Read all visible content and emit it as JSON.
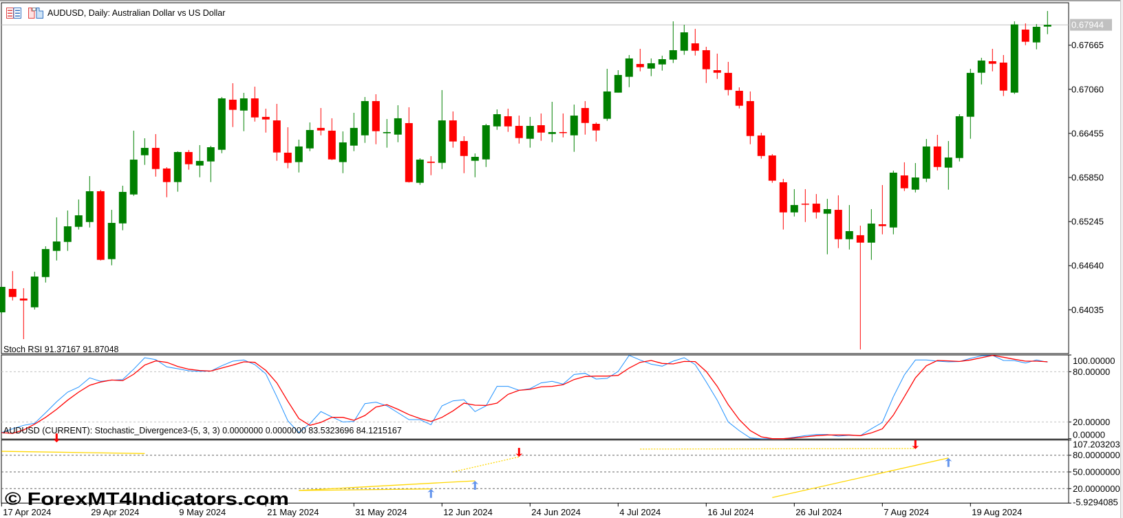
{
  "window": {
    "title": "AUDUSD, Daily:  Australian Dollar vs US Dollar",
    "icons": [
      "chart-list-icon",
      "template-icon"
    ]
  },
  "colors": {
    "bull": "#008000",
    "bear": "#ff0000",
    "stoch_main": "#1e90ff",
    "stoch_signal": "#ff0000",
    "divergence_line": "#ffd700",
    "bull_arrow": "#6495ed",
    "bear_arrow": "#ff0000",
    "price_tag": "#c0c0c0"
  },
  "watermark": "© ForexMT4Indicators.com",
  "chart_data": [
    {
      "type": "candlestick",
      "symbol": "AUDUSD",
      "timeframe": "Daily",
      "ylim": [
        0.63434,
        0.68247
      ],
      "price_ticks": [
        "0.67665",
        "0.67060",
        "0.66455",
        "0.65850",
        "0.65245",
        "0.64640",
        "0.64035"
      ],
      "current_price": "0.67944",
      "x_ticks": [
        "17 Apr 2024",
        "29 Apr 2024",
        "9 May 2024",
        "21 May 2024",
        "31 May 2024",
        "12 Jun 2024",
        "24 Jun 2024",
        "4 Jul 2024",
        "16 Jul 2024",
        "26 Jul 2024",
        "7 Aug 2024",
        "19 Aug 2024"
      ],
      "ohlc_fields": [
        "open",
        "high",
        "low",
        "close"
      ],
      "ohlc": [
        [
          0.64,
          0.64349,
          0.6398,
          0.64349
        ],
        [
          0.64321,
          0.64566,
          0.64163,
          0.64211
        ],
        [
          0.64189,
          0.64331,
          0.63632,
          0.64163
        ],
        [
          0.64069,
          0.64557,
          0.64038,
          0.64491
        ],
        [
          0.64484,
          0.64906,
          0.64409,
          0.64868
        ],
        [
          0.64843,
          0.65303,
          0.64711,
          0.64972
        ],
        [
          0.64966,
          0.65397,
          0.64843,
          0.6518
        ],
        [
          0.65173,
          0.65548,
          0.65136,
          0.65331
        ],
        [
          0.65239,
          0.65869,
          0.65164,
          0.65661
        ],
        [
          0.65661,
          0.6568,
          0.64711,
          0.6472
        ],
        [
          0.6473,
          0.65406,
          0.64645,
          0.65227
        ],
        [
          0.6522,
          0.65737,
          0.65126,
          0.65652
        ],
        [
          0.65617,
          0.66492,
          0.65598,
          0.66095
        ],
        [
          0.66155,
          0.66388,
          0.66023,
          0.66256
        ],
        [
          0.66256,
          0.66445,
          0.65862,
          0.65966
        ],
        [
          0.65973,
          0.65991,
          0.65579,
          0.65787
        ],
        [
          0.65787,
          0.66208,
          0.65655,
          0.66199
        ],
        [
          0.66199,
          0.66227,
          0.65957,
          0.66032
        ],
        [
          0.66014,
          0.66294,
          0.65853,
          0.66077
        ],
        [
          0.6607,
          0.66284,
          0.65787,
          0.66265
        ],
        [
          0.6623,
          0.66954,
          0.66183,
          0.66935
        ],
        [
          0.66917,
          0.67143,
          0.66542,
          0.66778
        ],
        [
          0.66768,
          0.67011,
          0.66485,
          0.66935
        ],
        [
          0.66935,
          0.67096,
          0.66617,
          0.66674
        ],
        [
          0.66681,
          0.66794,
          0.66466,
          0.66646
        ],
        [
          0.66633,
          0.6686,
          0.66079,
          0.66193
        ],
        [
          0.6619,
          0.66539,
          0.65976,
          0.66051
        ],
        [
          0.66061,
          0.66369,
          0.65919,
          0.66275
        ],
        [
          0.66249,
          0.66605,
          0.66211,
          0.66501
        ],
        [
          0.6653,
          0.66803,
          0.66428,
          0.66495
        ],
        [
          0.66492,
          0.66662,
          0.66089,
          0.66098
        ],
        [
          0.66061,
          0.66482,
          0.65909,
          0.66331
        ],
        [
          0.66287,
          0.66737,
          0.66211,
          0.6653
        ],
        [
          0.66428,
          0.66954,
          0.66325,
          0.66898
        ],
        [
          0.66898,
          0.66992,
          0.66306,
          0.66485
        ],
        [
          0.66457,
          0.66652,
          0.66259,
          0.66473
        ],
        [
          0.66438,
          0.66841,
          0.66334,
          0.66662
        ],
        [
          0.66596,
          0.66813,
          0.6578,
          0.65787
        ],
        [
          0.65777,
          0.66114,
          0.65749,
          0.66095
        ],
        [
          0.66067,
          0.66143,
          0.65881,
          0.66051
        ],
        [
          0.66051,
          0.67049,
          0.65966,
          0.66633
        ],
        [
          0.66633,
          0.66756,
          0.66259,
          0.66344
        ],
        [
          0.6635,
          0.66416,
          0.65909,
          0.66145
        ],
        [
          0.66079,
          0.6618,
          0.65853,
          0.66133
        ],
        [
          0.66098,
          0.66586,
          0.65994,
          0.66567
        ],
        [
          0.66551,
          0.66784,
          0.66504,
          0.66718
        ],
        [
          0.6669,
          0.66794,
          0.66476,
          0.66551
        ],
        [
          0.66558,
          0.66699,
          0.66315,
          0.66391
        ],
        [
          0.66381,
          0.66681,
          0.66259,
          0.66558
        ],
        [
          0.66567,
          0.66728,
          0.66353,
          0.66466
        ],
        [
          0.66447,
          0.66888,
          0.66334,
          0.66473
        ],
        [
          0.66473,
          0.66728,
          0.664,
          0.66466
        ],
        [
          0.66428,
          0.6685,
          0.66202,
          0.66699
        ],
        [
          0.66803,
          0.66898,
          0.66438,
          0.66598
        ],
        [
          0.66586,
          0.66605,
          0.66344,
          0.66495
        ],
        [
          0.66655,
          0.67341,
          0.66627,
          0.6703
        ],
        [
          0.67014,
          0.67322,
          0.67014,
          0.67256
        ],
        [
          0.67231,
          0.6753,
          0.67089,
          0.67483
        ],
        [
          0.67407,
          0.67615,
          0.67306,
          0.67363
        ],
        [
          0.67344,
          0.67483,
          0.6724,
          0.67417
        ],
        [
          0.67401,
          0.67521,
          0.67316,
          0.67473
        ],
        [
          0.67467,
          0.67992,
          0.6742,
          0.67596
        ],
        [
          0.67589,
          0.67945,
          0.67533,
          0.67841
        ],
        [
          0.6769,
          0.67889,
          0.67523,
          0.67589
        ],
        [
          0.67596,
          0.67643,
          0.67146,
          0.67335
        ],
        [
          0.67322,
          0.67549,
          0.67202,
          0.67287
        ],
        [
          0.67285,
          0.67436,
          0.66976,
          0.67051
        ],
        [
          0.67039,
          0.67086,
          0.66797,
          0.66834
        ],
        [
          0.66898,
          0.6703,
          0.66306,
          0.66419
        ],
        [
          0.66426,
          0.66463,
          0.66108,
          0.66145
        ],
        [
          0.66152,
          0.66171,
          0.65777,
          0.65806
        ],
        [
          0.65784,
          0.65831,
          0.65136,
          0.65371
        ],
        [
          0.65371,
          0.6569,
          0.65315,
          0.65472
        ],
        [
          0.65491,
          0.6569,
          0.65239,
          0.65485
        ],
        [
          0.65491,
          0.65623,
          0.65287,
          0.65371
        ],
        [
          0.65353,
          0.65557,
          0.64796,
          0.65416
        ],
        [
          0.65406,
          0.65605,
          0.64881,
          0.65003
        ],
        [
          0.65003,
          0.65472,
          0.64862,
          0.65114
        ],
        [
          0.65058,
          0.65189,
          0.63491,
          0.64956
        ],
        [
          0.64956,
          0.65416,
          0.6472,
          0.65218
        ],
        [
          0.65208,
          0.65746,
          0.6507,
          0.65183
        ],
        [
          0.65164,
          0.65944,
          0.6507,
          0.65916
        ],
        [
          0.65878,
          0.66058,
          0.65664,
          0.65702
        ],
        [
          0.65683,
          0.66048,
          0.65645,
          0.6585
        ],
        [
          0.65834,
          0.66378,
          0.65787,
          0.66275
        ],
        [
          0.66275,
          0.66435,
          0.65947,
          0.65994
        ],
        [
          0.65985,
          0.6635,
          0.65683,
          0.66124
        ],
        [
          0.66117,
          0.66718,
          0.6607,
          0.6669
        ],
        [
          0.66683,
          0.67341,
          0.66381,
          0.67285
        ],
        [
          0.67287,
          0.67492,
          0.67127,
          0.67454
        ],
        [
          0.67445,
          0.67615,
          0.67306,
          0.6741
        ],
        [
          0.67426,
          0.6753,
          0.66967,
          0.67042
        ],
        [
          0.67014,
          0.67992,
          0.66995,
          0.6795
        ],
        [
          0.67879,
          0.67964,
          0.67665,
          0.67712
        ],
        [
          0.67703,
          0.67955,
          0.67608,
          0.67917
        ],
        [
          0.6792,
          0.68134,
          0.67816,
          0.67944
        ]
      ]
    },
    {
      "type": "line",
      "label": "Stoch RSI 91.37167 91.87048",
      "ylim": [
        0,
        100
      ],
      "levels": [
        80,
        20
      ],
      "y_ticks": [
        "100.00000",
        "80.00000",
        "20.00000",
        "0.00000"
      ],
      "y_tick_values": [
        100,
        80,
        20,
        0
      ],
      "series": [
        {
          "values": [
            7.2,
            11.8,
            15.9,
            18.4,
            31.0,
            44.1,
            55.6,
            61.6,
            72.6,
            68.5,
            69.9,
            70.7,
            83.0,
            96.7,
            94.5,
            85.8,
            83.6,
            81.1,
            80.5,
            80.8,
            87.1,
            92.6,
            94.0,
            88.5,
            77.5,
            50.1,
            21.4,
            7.2,
            17.8,
            32.4,
            26.0,
            20.0,
            20.6,
            41.9,
            43.6,
            39.2,
            31.0,
            22.8,
            22.8,
            16.7,
            39.2,
            45.2,
            46.6,
            32.4,
            39.2,
            62.5,
            62.5,
            57.8,
            59.7,
            66.6,
            68.5,
            65.2,
            76.7,
            78.1,
            71.2,
            72.1,
            80.3,
            99.5,
            94.0,
            89.0,
            86.6,
            92.6,
            96.7,
            88.5,
            67.9,
            46.0,
            20.0,
            9.6,
            0.9,
            0,
            0,
            0,
            1.7,
            3.6,
            5.0,
            5.0,
            3.0,
            4.1,
            3.6,
            11.8,
            19.5,
            50.1,
            76.2,
            94.0,
            94.0,
            92.6,
            91.8,
            92.1,
            95.9,
            98.9,
            99.5,
            93.4,
            93.2,
            90.4,
            94.0,
            91.37167
          ]
        },
        {
          "values": [
            7.2,
            6.3,
            10.4,
            17.3,
            25.5,
            35.1,
            46.0,
            55.6,
            63.8,
            67.7,
            70.1,
            69.3,
            77.0,
            87.9,
            92.9,
            91.2,
            86.3,
            83.0,
            81.4,
            80.8,
            84.4,
            87.9,
            91.8,
            91.2,
            81.6,
            66.6,
            44.7,
            24.1,
            15.9,
            19.5,
            25.5,
            25.5,
            21.9,
            27.7,
            37.8,
            40.6,
            35.1,
            28.8,
            24.1,
            20.6,
            25.5,
            33.2,
            42.5,
            40.0,
            39.7,
            42.5,
            52.9,
            57.8,
            58.9,
            61.9,
            62.5,
            64.4,
            70.7,
            74.3,
            74.8,
            74.8,
            75.6,
            84.4,
            91.2,
            93.4,
            89.9,
            89.3,
            92.3,
            92.1,
            80.3,
            62.5,
            40.6,
            22.8,
            9.6,
            2.2,
            0,
            0,
            0.9,
            2.2,
            3.6,
            4.4,
            4.4,
            4.4,
            3.6,
            6.9,
            11.8,
            28.2,
            50.1,
            72.6,
            87.1,
            93.4,
            92.9,
            92.3,
            94.0,
            96.7,
            99.5,
            97.3,
            94.8,
            92.6,
            92.6,
            91.87048
          ]
        }
      ]
    },
    {
      "type": "line",
      "label": "AUDUSD (CURRENT): Stochastic_Divergence3-(5, 3, 3) 0.0000000 0.0000000 83.5323696 84.1215167",
      "ylim": [
        -5.9294085,
        107.203203
      ],
      "levels": [
        80,
        50,
        20
      ],
      "y_ticks": [
        "107.203203",
        "80.0000000",
        "50.0000000",
        "20.0000000",
        "-5.9294085"
      ],
      "y_tick_values": [
        107.203203,
        80,
        50,
        20,
        -5.9294085
      ],
      "divergence_lines": [
        {
          "from": [
            "17 Apr 2024",
            87
          ],
          "to": [
            "6 May 2024",
            83
          ],
          "style": "solid"
        },
        {
          "from": [
            "24 May 2024",
            16.7
          ],
          "to": [
            "11 Jun 2024",
            19.5
          ],
          "style": "solid"
        },
        {
          "from": [
            "24 May 2024",
            16.7
          ],
          "to": [
            "17 Jun 2024",
            34
          ],
          "style": "solid"
        },
        {
          "from": [
            "13 Jun 2024",
            50
          ],
          "to": [
            "21 Jun 2024",
            77
          ],
          "style": "dotted"
        },
        {
          "from": [
            "8 Jul 2024",
            91
          ],
          "to": [
            "12 Aug 2024",
            92
          ],
          "style": "dotted"
        },
        {
          "from": [
            "24 Jul 2024",
            4
          ],
          "to": [
            "15 Aug 2024",
            75
          ],
          "style": "solid"
        }
      ],
      "arrows": [
        {
          "date": "24 Apr 2024",
          "value": 103,
          "direction": "down"
        },
        {
          "date": "11 Jun 2024",
          "value": 19.5,
          "direction": "up"
        },
        {
          "date": "17 Jun 2024",
          "value": 34,
          "direction": "up"
        },
        {
          "date": "21 Jun 2024",
          "value": 77,
          "direction": "down"
        },
        {
          "date": "12 Aug 2024",
          "value": 91,
          "direction": "down"
        },
        {
          "date": "15 Aug 2024",
          "value": 75,
          "direction": "up"
        }
      ]
    }
  ]
}
